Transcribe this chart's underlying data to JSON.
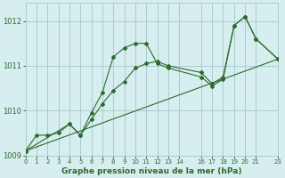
{
  "title": "Graphe pression niveau de la mer (hPa)",
  "bg_color": "#d6eef0",
  "grid_color": "#aacccc",
  "line_color": "#2d6a2d",
  "xlim": [
    0,
    23
  ],
  "ylim": [
    1009,
    1012.4
  ],
  "xticks": [
    0,
    1,
    2,
    3,
    4,
    5,
    6,
    7,
    8,
    9,
    10,
    11,
    12,
    13,
    14,
    16,
    17,
    18,
    19,
    20,
    21,
    23
  ],
  "yticks": [
    1009,
    1010,
    1011,
    1012
  ],
  "series1_x": [
    0,
    1,
    2,
    3,
    4,
    5,
    6,
    7,
    8,
    9,
    10,
    11,
    12,
    13,
    16,
    17,
    18,
    19,
    20,
    21,
    23
  ],
  "series1_y": [
    1009.1,
    1009.45,
    1009.45,
    1009.5,
    1009.7,
    1009.45,
    1009.95,
    1010.4,
    1011.2,
    1011.4,
    1011.5,
    1011.5,
    1011.05,
    1010.95,
    1010.75,
    1010.55,
    1010.7,
    1011.9,
    1012.1,
    1011.6,
    1011.15
  ],
  "series2_x": [
    0,
    4,
    5,
    6,
    7,
    8,
    9,
    10,
    11,
    12,
    13,
    16,
    17,
    18,
    19,
    20,
    21,
    23
  ],
  "series2_y": [
    1009.1,
    1009.7,
    1009.45,
    1009.8,
    1010.15,
    1010.45,
    1010.65,
    1010.95,
    1011.05,
    1011.1,
    1011.0,
    1010.85,
    1010.6,
    1010.75,
    1011.9,
    1012.1,
    1011.6,
    1011.15
  ],
  "series3_x": [
    0,
    23
  ],
  "series3_y": [
    1009.1,
    1011.15
  ]
}
